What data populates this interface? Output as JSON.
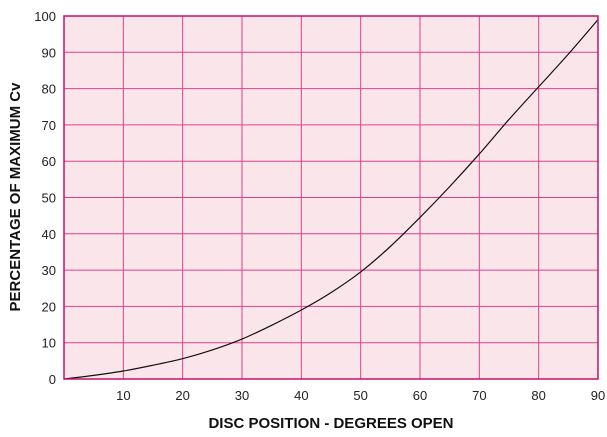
{
  "chart_data": {
    "type": "line",
    "xlabel": "DISC POSITION - DEGREES OPEN",
    "ylabel": "PERCENTAGE OF MAXIMUM Cv",
    "xlim": [
      0,
      90
    ],
    "ylim": [
      0,
      100
    ],
    "xticks": [
      10,
      20,
      30,
      40,
      50,
      60,
      70,
      80,
      90
    ],
    "yticks": [
      0,
      10,
      20,
      30,
      40,
      50,
      60,
      70,
      80,
      90,
      100
    ],
    "grid": true,
    "colors": {
      "plot_background": "#fae6ea",
      "grid": "#e0408a",
      "frame": "#c8106a",
      "line": "#111111"
    },
    "series": [
      {
        "x": [
          0,
          5,
          10,
          15,
          20,
          25,
          30,
          35,
          40,
          45,
          50,
          55,
          60,
          65,
          70,
          75,
          80,
          85,
          90
        ],
        "values": [
          0,
          1,
          2.2,
          3.8,
          5.6,
          8,
          11,
          14.8,
          19,
          23.8,
          29.5,
          36.5,
          44.5,
          53,
          62,
          71.5,
          80.5,
          89.5,
          99
        ]
      }
    ]
  }
}
